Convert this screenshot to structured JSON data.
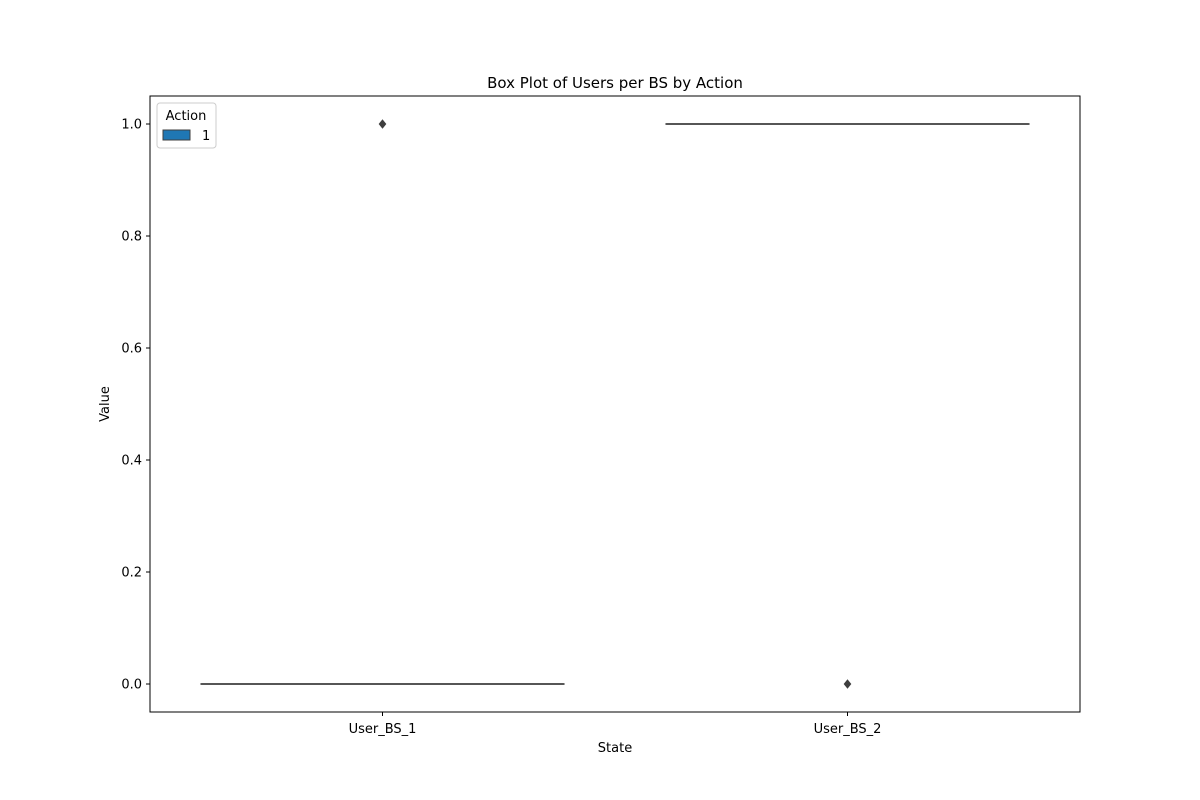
{
  "chart_data": {
    "type": "box",
    "title": "Box Plot of Users per BS by Action",
    "xlabel": "State",
    "ylabel": "Value",
    "categories": [
      "User_BS_1",
      "User_BS_2"
    ],
    "ylim": [
      -0.05,
      1.05
    ],
    "yticks": [
      0.0,
      0.2,
      0.4,
      0.6,
      0.8,
      1.0
    ],
    "ytick_labels": [
      "0.0",
      "0.2",
      "0.4",
      "0.6",
      "0.8",
      "1.0"
    ],
    "legend": {
      "title": "Action",
      "placement": "top-left",
      "entries": [
        "1"
      ]
    },
    "series": [
      {
        "name": "1",
        "color": "#1f77b4",
        "boxes": [
          {
            "category": "User_BS_1",
            "q1": 0,
            "median": 0,
            "q3": 0,
            "whisker_low": 0,
            "whisker_high": 0,
            "outliers": [
              1
            ]
          },
          {
            "category": "User_BS_2",
            "q1": 1,
            "median": 1,
            "q3": 1,
            "whisker_low": 1,
            "whisker_high": 1,
            "outliers": [
              0
            ]
          }
        ]
      }
    ],
    "grid": false
  }
}
